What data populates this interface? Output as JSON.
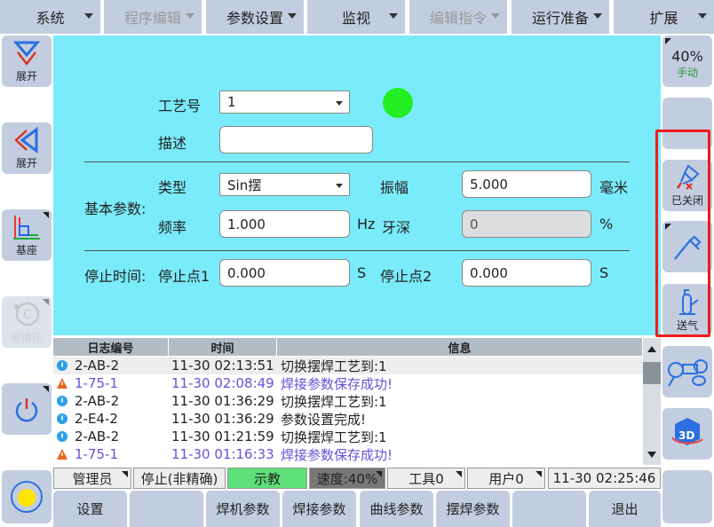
{
  "menu": [
    {
      "label": "系统",
      "enabled": true
    },
    {
      "label": "程序编辑",
      "enabled": false
    },
    {
      "label": "参数设置",
      "enabled": true
    },
    {
      "label": "监视",
      "enabled": true
    },
    {
      "label": "编辑指令",
      "enabled": false
    },
    {
      "label": "运行准备",
      "enabled": true
    },
    {
      "label": "扩展",
      "enabled": true
    }
  ],
  "left": {
    "expand1": "展开",
    "expand2": "展开",
    "base": "基座",
    "cycle": "单循环"
  },
  "right": {
    "speed": "40%",
    "mode": "手动",
    "torch_status": "已关闭",
    "gas": "送气"
  },
  "form": {
    "craft_label": "工艺号",
    "craft_value": "1",
    "status_color": "#22ee22",
    "desc_label": "描述",
    "desc_value": "",
    "basic_label": "基本参数:",
    "type_label": "类型",
    "type_value": "Sin摆",
    "amp_label": "振幅",
    "amp_value": "5.000",
    "amp_unit": "毫米",
    "freq_label": "频率",
    "freq_value": "1.000",
    "freq_unit": "Hz",
    "depth_label": "牙深",
    "depth_value": "0",
    "depth_unit": "%",
    "stop_label": "停止时间:",
    "stop1_label": "停止点1",
    "stop1_value": "0.000",
    "stop1_unit": "S",
    "stop2_label": "停止点2",
    "stop2_value": "0.000",
    "stop2_unit": "S"
  },
  "log": {
    "headers": [
      "日志编号",
      "时间",
      "信息"
    ],
    "rows": [
      {
        "type": "info",
        "id": "2-AB-2",
        "time": "11-30 02:13:51",
        "msg": "切换摆焊工艺到:1"
      },
      {
        "type": "warn",
        "id": "1-75-1",
        "time": "11-30 02:08:49",
        "msg": "焊接参数保存成功!"
      },
      {
        "type": "info",
        "id": "2-AB-2",
        "time": "11-30 01:36:29",
        "msg": "切换摆焊工艺到:1"
      },
      {
        "type": "info",
        "id": "2-E4-2",
        "time": "11-30 01:36:29",
        "msg": "参数设置完成!"
      },
      {
        "type": "info",
        "id": "2-AB-2",
        "time": "11-30 01:21:59",
        "msg": "切换摆焊工艺到:1"
      },
      {
        "type": "warn",
        "id": "1-75-1",
        "time": "11-30 01:16:33",
        "msg": "焊接参数保存成功!"
      }
    ]
  },
  "status": {
    "user": "管理员",
    "state": "停止(非精确)",
    "mode": "示教",
    "speed": "速度:40%",
    "tool": "工具0",
    "userframe": "用户0",
    "clock": "11-30 02:25:46"
  },
  "bottom": [
    "设置",
    "",
    "焊机参数",
    "焊接参数",
    "曲线参数",
    "摆焊参数",
    "",
    "退出"
  ]
}
